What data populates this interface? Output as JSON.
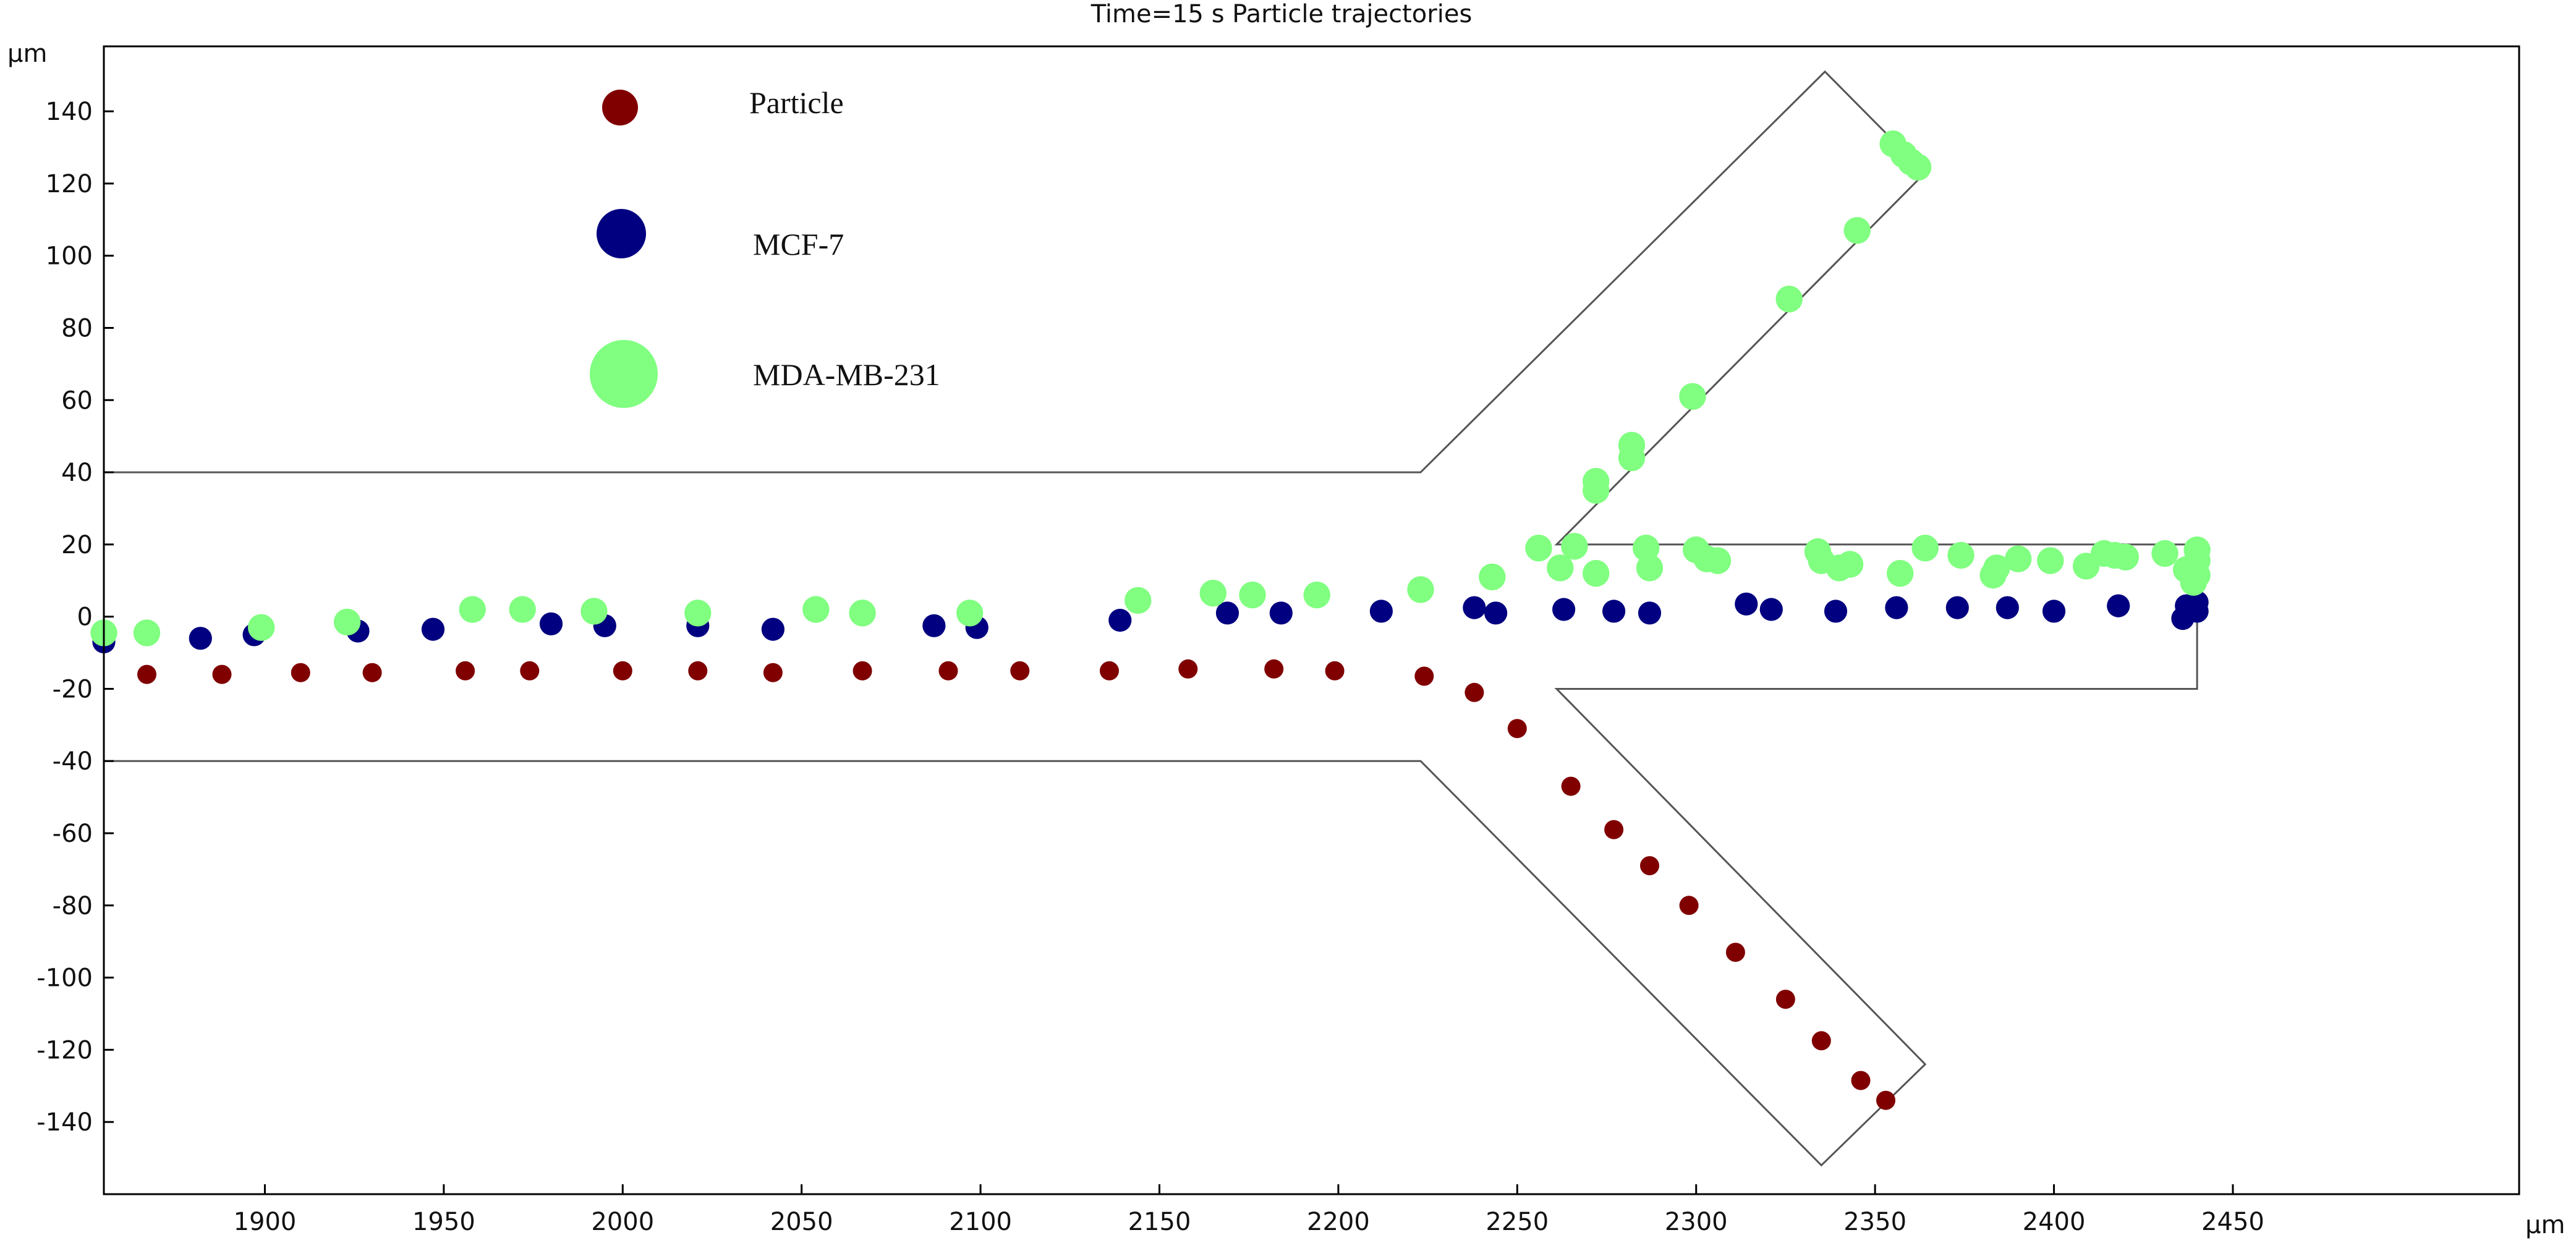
{
  "chart_data": {
    "type": "scatter",
    "title": "Time=15 s  Particle trajectories",
    "xlabel": "μm",
    "ylabel": "μm",
    "xlim": [
      1855,
      2530
    ],
    "ylim": [
      -160,
      158
    ],
    "xticks": [
      1900,
      1950,
      2000,
      2050,
      2100,
      2150,
      2200,
      2250,
      2300,
      2350,
      2400,
      2450
    ],
    "yticks": [
      140,
      120,
      100,
      80,
      60,
      40,
      20,
      0,
      -20,
      -40,
      -60,
      -80,
      -100,
      -120,
      -140
    ],
    "colors": {
      "particle": "#800000",
      "mcf7": "#000080",
      "mda": "#80ff80",
      "channel": "#555555"
    },
    "channel_outline": [
      [
        [
          1855,
          40
        ],
        [
          2223,
          40
        ],
        [
          2336,
          151
        ],
        [
          2364,
          123
        ],
        [
          2261,
          20
        ],
        [
          2440,
          20
        ],
        [
          2440,
          -20
        ],
        [
          2261,
          -20
        ],
        [
          2364,
          -124
        ],
        [
          2335,
          -152
        ],
        [
          2223,
          -40
        ],
        [
          1855,
          -40
        ]
      ]
    ],
    "series": [
      {
        "name": "Particle",
        "color": "#800000",
        "size": 5,
        "points": [
          [
            1867,
            -16
          ],
          [
            1888,
            -16
          ],
          [
            1910,
            -15.5
          ],
          [
            1930,
            -15.5
          ],
          [
            1956,
            -15
          ],
          [
            1974,
            -15
          ],
          [
            2000,
            -15
          ],
          [
            2021,
            -15
          ],
          [
            2042,
            -15.5
          ],
          [
            2067,
            -15
          ],
          [
            2091,
            -15
          ],
          [
            2111,
            -15
          ],
          [
            2136,
            -15
          ],
          [
            2158,
            -14.5
          ],
          [
            2182,
            -14.5
          ],
          [
            2199,
            -15
          ],
          [
            2224,
            -16.5
          ],
          [
            2238,
            -21
          ],
          [
            2250,
            -31
          ],
          [
            2265,
            -47
          ],
          [
            2277,
            -59
          ],
          [
            2287,
            -69
          ],
          [
            2298,
            -80
          ],
          [
            2311,
            -93
          ],
          [
            2325,
            -106
          ],
          [
            2335,
            -117.5
          ],
          [
            2346,
            -128.5
          ],
          [
            2353,
            -134
          ]
        ]
      },
      {
        "name": "MCF-7",
        "color": "#000080",
        "size": 6,
        "points": [
          [
            1855,
            -7
          ],
          [
            1882,
            -6
          ],
          [
            1897,
            -5
          ],
          [
            1926,
            -4
          ],
          [
            1947,
            -3.5
          ],
          [
            1980,
            -2
          ],
          [
            1995,
            -2.5
          ],
          [
            2021,
            -2.5
          ],
          [
            2042,
            -3.5
          ],
          [
            2087,
            -2.5
          ],
          [
            2099,
            -3
          ],
          [
            2139,
            -1
          ],
          [
            2169,
            1
          ],
          [
            2184,
            1
          ],
          [
            2212,
            1.5
          ],
          [
            2238,
            2.5
          ],
          [
            2244,
            1
          ],
          [
            2263,
            2
          ],
          [
            2277,
            1.5
          ],
          [
            2287,
            1
          ],
          [
            2314,
            3.5
          ],
          [
            2321,
            2
          ],
          [
            2339,
            1.5
          ],
          [
            2356,
            2.5
          ],
          [
            2373,
            2.5
          ],
          [
            2387,
            2.5
          ],
          [
            2400,
            1.5
          ],
          [
            2418,
            3
          ],
          [
            2436,
            -0.5
          ],
          [
            2437,
            3
          ],
          [
            2440,
            1.5
          ],
          [
            2440,
            4
          ]
        ]
      },
      {
        "name": "MDA-MB-231",
        "color": "#80ff80",
        "size": 7,
        "points": [
          [
            1855,
            -4.5
          ],
          [
            1867,
            -4.5
          ],
          [
            1899,
            -3
          ],
          [
            1923,
            -1.5
          ],
          [
            1958,
            2
          ],
          [
            1972,
            2
          ],
          [
            1992,
            1.5
          ],
          [
            2021,
            1
          ],
          [
            2054,
            2
          ],
          [
            2067,
            1
          ],
          [
            2097,
            1
          ],
          [
            2144,
            4.5
          ],
          [
            2165,
            6.5
          ],
          [
            2176,
            6
          ],
          [
            2194,
            6
          ],
          [
            2223,
            7.5
          ],
          [
            2243,
            11
          ],
          [
            2256,
            19
          ],
          [
            2262,
            13.5
          ],
          [
            2266,
            19.5
          ],
          [
            2272,
            12
          ],
          [
            2272,
            35
          ],
          [
            2272,
            37.5
          ],
          [
            2282,
            44
          ],
          [
            2282,
            47.5
          ],
          [
            2286,
            19
          ],
          [
            2287,
            13.5
          ],
          [
            2299,
            61
          ],
          [
            2300,
            18.5
          ],
          [
            2303,
            16
          ],
          [
            2306,
            15.5
          ],
          [
            2326,
            88
          ],
          [
            2334,
            18
          ],
          [
            2335,
            15.5
          ],
          [
            2340,
            13.5
          ],
          [
            2343,
            14.5
          ],
          [
            2345,
            107
          ],
          [
            2355,
            131
          ],
          [
            2357,
            12
          ],
          [
            2358,
            128
          ],
          [
            2360,
            126
          ],
          [
            2362,
            124.5
          ],
          [
            2364,
            19
          ],
          [
            2374,
            17
          ],
          [
            2383,
            11.5
          ],
          [
            2384,
            13.5
          ],
          [
            2390,
            16
          ],
          [
            2399,
            15.5
          ],
          [
            2409,
            14
          ],
          [
            2414,
            17.5
          ],
          [
            2417,
            17
          ],
          [
            2420,
            16.5
          ],
          [
            2431,
            17.5
          ],
          [
            2437,
            13
          ],
          [
            2439,
            9.5
          ],
          [
            2440,
            11.5
          ],
          [
            2440,
            15.5
          ],
          [
            2440,
            18.5
          ]
        ]
      }
    ],
    "legend": [
      {
        "label": "Particle",
        "color": "#800000"
      },
      {
        "label": "MCF-7",
        "color": "#000080"
      },
      {
        "label": "MDA-MB-231",
        "color": "#80ff80"
      }
    ]
  }
}
